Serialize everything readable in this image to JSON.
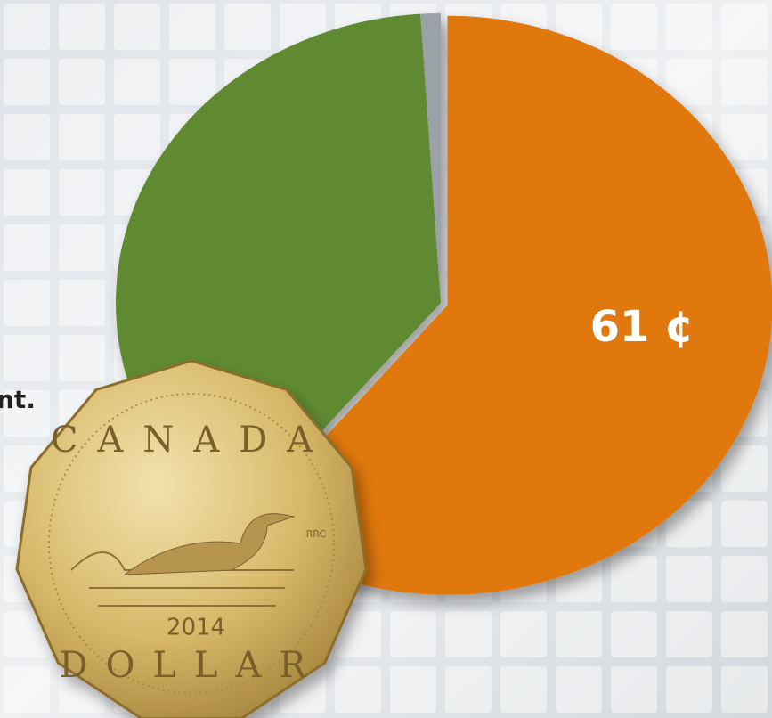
{
  "chart_data": {
    "type": "pie",
    "categories": [
      null,
      null,
      null
    ],
    "values": [
      61,
      38,
      1
    ],
    "value_labels": [
      "61 ¢",
      null,
      null
    ],
    "colors": [
      "#e07810",
      "#5e8a33",
      "#9aa2a8"
    ],
    "annotations": [
      "nt."
    ]
  },
  "coin": {
    "top": "CANADA",
    "mark": "RRC",
    "year": "2014",
    "bottom": "DOLLAR"
  }
}
